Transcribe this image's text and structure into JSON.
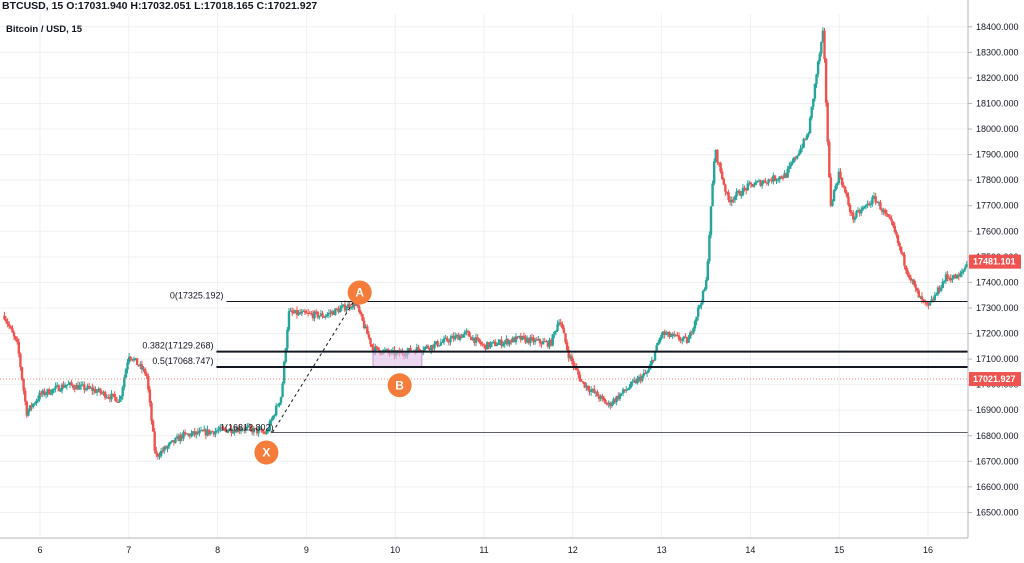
{
  "header": {
    "ohlc_symbol": "BTCUSD, 15",
    "open": "O:17031.940",
    "high": "H:17032.051",
    "low": "L:17018.165",
    "close": "C:17021.927",
    "series_title": "Bitcoin / USD, 15"
  },
  "colors": {
    "up": "#26a69a",
    "down": "#ef5350",
    "grid": "#eef0f3",
    "pattern_point": "#f57c3a",
    "price_tag": "#ef5350",
    "zone": "#e1bee7"
  },
  "chart_data": {
    "type": "candlestick",
    "title": "Bitcoin / USD, 15",
    "x_ticks": [
      "6",
      "7",
      "8",
      "9",
      "10",
      "11",
      "12",
      "13",
      "14",
      "15",
      "16"
    ],
    "ylim": [
      16400,
      18450
    ],
    "y_ticks": [
      "16500.000",
      "16600.000",
      "16700.000",
      "16800.000",
      "16900.000",
      "17000.000",
      "17100.000",
      "17200.000",
      "17300.000",
      "17400.000",
      "17500.000",
      "17600.000",
      "17700.000",
      "17800.000",
      "17900.000",
      "18000.000",
      "18100.000",
      "18200.000",
      "18300.000",
      "18400.000"
    ],
    "grid": true,
    "approx_close_path": [
      {
        "x": 5.6,
        "y": 17270
      },
      {
        "x": 5.75,
        "y": 17150
      },
      {
        "x": 5.85,
        "y": 16890
      },
      {
        "x": 6.0,
        "y": 16960
      },
      {
        "x": 6.3,
        "y": 17000
      },
      {
        "x": 6.6,
        "y": 16980
      },
      {
        "x": 6.9,
        "y": 16940
      },
      {
        "x": 7.0,
        "y": 17120
      },
      {
        "x": 7.2,
        "y": 17040
      },
      {
        "x": 7.3,
        "y": 16720
      },
      {
        "x": 7.6,
        "y": 16800
      },
      {
        "x": 8.0,
        "y": 16820
      },
      {
        "x": 8.3,
        "y": 16830
      },
      {
        "x": 8.55,
        "y": 16810
      },
      {
        "x": 8.72,
        "y": 16960
      },
      {
        "x": 8.8,
        "y": 17280
      },
      {
        "x": 9.2,
        "y": 17270
      },
      {
        "x": 9.55,
        "y": 17320
      },
      {
        "x": 9.75,
        "y": 17140
      },
      {
        "x": 10.0,
        "y": 17120
      },
      {
        "x": 10.4,
        "y": 17150
      },
      {
        "x": 10.8,
        "y": 17200
      },
      {
        "x": 11.0,
        "y": 17150
      },
      {
        "x": 11.4,
        "y": 17180
      },
      {
        "x": 11.75,
        "y": 17160
      },
      {
        "x": 11.85,
        "y": 17260
      },
      {
        "x": 11.95,
        "y": 17120
      },
      {
        "x": 12.1,
        "y": 17010
      },
      {
        "x": 12.4,
        "y": 16920
      },
      {
        "x": 12.7,
        "y": 17010
      },
      {
        "x": 12.85,
        "y": 17050
      },
      {
        "x": 13.0,
        "y": 17200
      },
      {
        "x": 13.3,
        "y": 17170
      },
      {
        "x": 13.5,
        "y": 17390
      },
      {
        "x": 13.6,
        "y": 17920
      },
      {
        "x": 13.75,
        "y": 17720
      },
      {
        "x": 14.0,
        "y": 17780
      },
      {
        "x": 14.4,
        "y": 17820
      },
      {
        "x": 14.65,
        "y": 17980
      },
      {
        "x": 14.75,
        "y": 18230
      },
      {
        "x": 14.82,
        "y": 18380
      },
      {
        "x": 14.9,
        "y": 17700
      },
      {
        "x": 15.0,
        "y": 17830
      },
      {
        "x": 15.15,
        "y": 17650
      },
      {
        "x": 15.4,
        "y": 17730
      },
      {
        "x": 15.6,
        "y": 17620
      },
      {
        "x": 15.75,
        "y": 17460
      },
      {
        "x": 15.9,
        "y": 17340
      },
      {
        "x": 16.0,
        "y": 17300
      },
      {
        "x": 16.2,
        "y": 17420
      },
      {
        "x": 16.35,
        "y": 17420
      },
      {
        "x": 16.45,
        "y": 17481
      }
    ],
    "current_price": "17481.101",
    "marker_price": "17021.927",
    "fib_levels": [
      {
        "label": "0(17325.192)",
        "value": 17325.192
      },
      {
        "label": "0.382(17129.268)",
        "value": 17129.268
      },
      {
        "label": "0.5(17068.747)",
        "value": 17068.747
      }
    ],
    "x_level_label": "1(16812.802)",
    "x_level_value": 16812.802,
    "points": [
      {
        "name": "X",
        "x": 8.55,
        "y": 16812.802
      },
      {
        "name": "A",
        "x": 9.6,
        "y": 17325.192
      },
      {
        "name": "B",
        "x": 10.05,
        "y": 17060
      }
    ]
  }
}
